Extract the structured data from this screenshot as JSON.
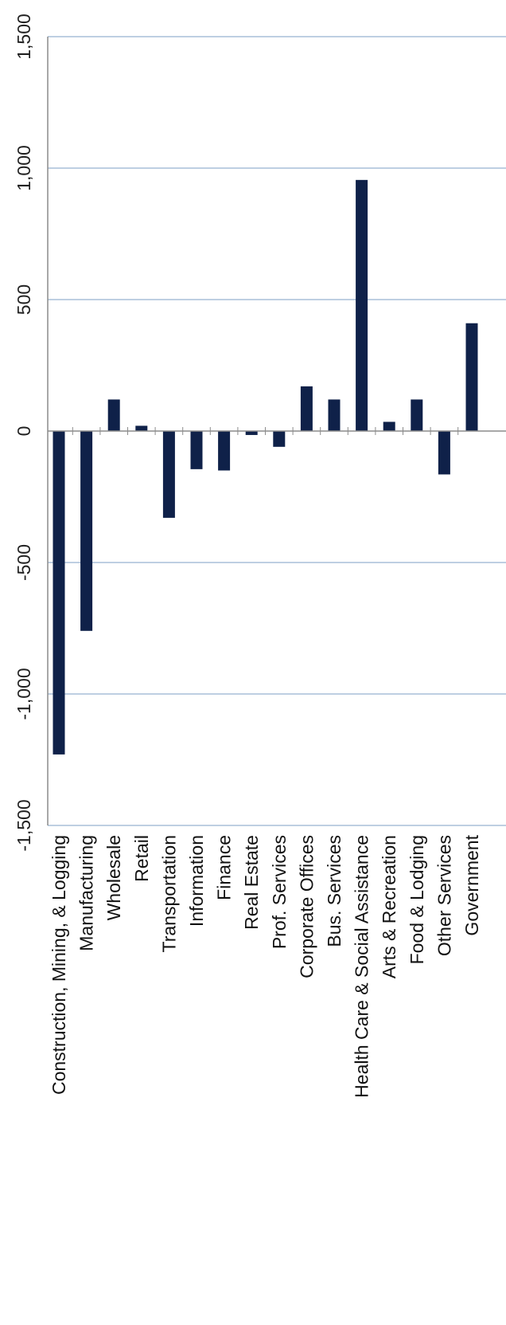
{
  "chart_data": {
    "type": "bar",
    "orientation": "vertical-bars, rotated 90 degrees (category labels read bottom-to-top)",
    "categories": [
      "Construction, Mining, & Logging",
      "Manufacturing",
      "Wholesale",
      "Retail",
      "Transportation",
      "Information",
      "Finance",
      "Real Estate",
      "Prof. Services",
      "Corporate Offices",
      "Bus. Services",
      "Health Care & Social Assistance",
      "Arts & Recreation",
      "Food & Lodging",
      "Other Services",
      "Government"
    ],
    "values": [
      -1230,
      -760,
      120,
      20,
      -330,
      -145,
      -150,
      -15,
      -60,
      170,
      120,
      955,
      35,
      120,
      -165,
      410
    ],
    "ylim": [
      -1500,
      1500
    ],
    "yticks": [
      -1500,
      -1000,
      -500,
      0,
      500,
      1000,
      1500
    ],
    "ytick_labels": [
      "-1,500",
      "-1,000",
      "-500",
      "0",
      "500",
      "1,000",
      "1,500"
    ],
    "title": "",
    "xlabel": "",
    "ylabel": "",
    "grid": true,
    "legend": "none",
    "colors": {
      "bar": "#0f2149",
      "grid": "#a9bfd8",
      "axis": "#8c8c8c"
    }
  }
}
